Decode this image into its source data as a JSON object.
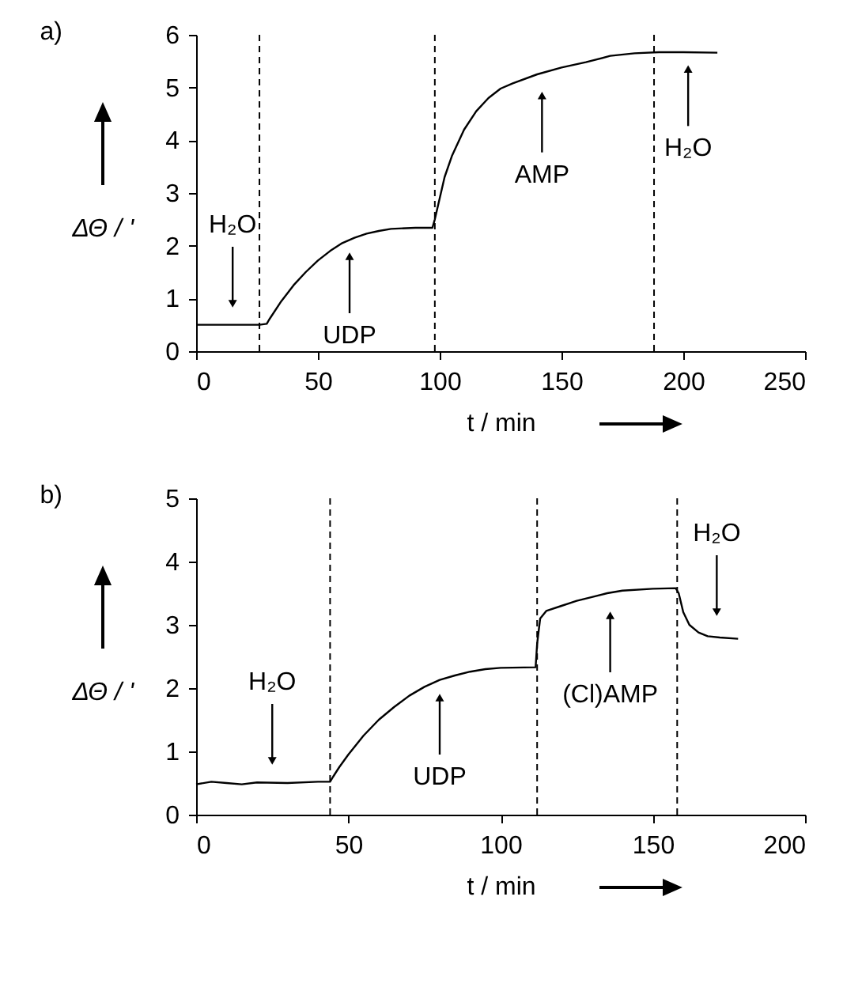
{
  "chart_data": [
    {
      "type": "line",
      "title": "a)",
      "xlabel": "t / min",
      "ylabel": "ΔΘ / '",
      "xlim": [
        0,
        250
      ],
      "xticks": [
        0,
        50,
        100,
        150,
        200,
        250
      ],
      "ylim": [
        0,
        6
      ],
      "yticks": [
        0,
        1,
        2,
        3,
        4,
        5,
        6
      ],
      "grid": false,
      "legend": false,
      "marker": "none",
      "line_style": "solid",
      "series": [
        {
          "color": "#000000",
          "x": [
            0,
            10,
            20,
            26,
            29,
            30,
            35,
            40,
            45,
            50,
            55,
            60,
            65,
            70,
            75,
            80,
            90,
            97,
            98,
            100,
            102,
            105,
            110,
            115,
            120,
            125,
            130,
            140,
            150,
            160,
            170,
            180,
            190,
            200,
            214
          ],
          "values": [
            0.5,
            0.5,
            0.5,
            0.5,
            0.52,
            0.6,
            0.95,
            1.25,
            1.5,
            1.72,
            1.9,
            2.05,
            2.15,
            2.23,
            2.28,
            2.32,
            2.34,
            2.34,
            2.5,
            2.9,
            3.3,
            3.7,
            4.2,
            4.55,
            4.8,
            4.98,
            5.08,
            5.25,
            5.38,
            5.48,
            5.6,
            5.65,
            5.67,
            5.67,
            5.66
          ]
        }
      ],
      "ref_lines": [
        {
          "axis": "x",
          "value": 26,
          "line_style": "dashed"
        },
        {
          "axis": "x",
          "value": 98,
          "line_style": "dashed"
        },
        {
          "axis": "x",
          "value": 188,
          "line_style": "dashed"
        }
      ],
      "annotations": [
        {
          "text": "H₂O",
          "x": 15,
          "y": 0.9
        },
        {
          "text": "UDP",
          "x": 63,
          "y": 1.8
        },
        {
          "text": "AMP",
          "x": 142,
          "y": 4.85
        },
        {
          "text": "H₂O",
          "x": 202,
          "y": 5.35
        }
      ]
    },
    {
      "type": "line",
      "title": "b)",
      "xlabel": "t / min",
      "ylabel": "ΔΘ / '",
      "xlim": [
        0,
        200
      ],
      "xticks": [
        0,
        50,
        100,
        150,
        200
      ],
      "ylim": [
        0,
        5
      ],
      "yticks": [
        0,
        1,
        2,
        3,
        4,
        5
      ],
      "grid": false,
      "legend": false,
      "marker": "none",
      "line_style": "solid",
      "series": [
        {
          "color": "#000000",
          "x": [
            0,
            5,
            10,
            15,
            20,
            30,
            40,
            44,
            45,
            47,
            50,
            55,
            60,
            65,
            70,
            75,
            80,
            85,
            90,
            95,
            100,
            111.5,
            112,
            113,
            115,
            120,
            125,
            130,
            135,
            140,
            150,
            157.5,
            158.5,
            160,
            162,
            165,
            168,
            172,
            178
          ],
          "values": [
            0.48,
            0.52,
            0.5,
            0.48,
            0.51,
            0.5,
            0.52,
            0.52,
            0.6,
            0.75,
            0.95,
            1.25,
            1.5,
            1.7,
            1.88,
            2.02,
            2.13,
            2.2,
            2.26,
            2.3,
            2.32,
            2.33,
            2.7,
            3.1,
            3.22,
            3.3,
            3.38,
            3.44,
            3.5,
            3.54,
            3.57,
            3.58,
            3.5,
            3.2,
            3.0,
            2.88,
            2.82,
            2.8,
            2.78
          ]
        }
      ],
      "ref_lines": [
        {
          "axis": "x",
          "value": 44,
          "line_style": "dashed"
        },
        {
          "axis": "x",
          "value": 112,
          "line_style": "dashed"
        },
        {
          "axis": "x",
          "value": 158,
          "line_style": "dashed"
        }
      ],
      "annotations": [
        {
          "text": "H₂O",
          "x": 25,
          "y": 0.85
        },
        {
          "text": "UDP",
          "x": 80,
          "y": 1.85
        },
        {
          "text": "(Cl)AMP",
          "x": 136,
          "y": 3.15
        },
        {
          "text": "H₂O",
          "x": 171,
          "y": 3.2
        }
      ]
    }
  ]
}
